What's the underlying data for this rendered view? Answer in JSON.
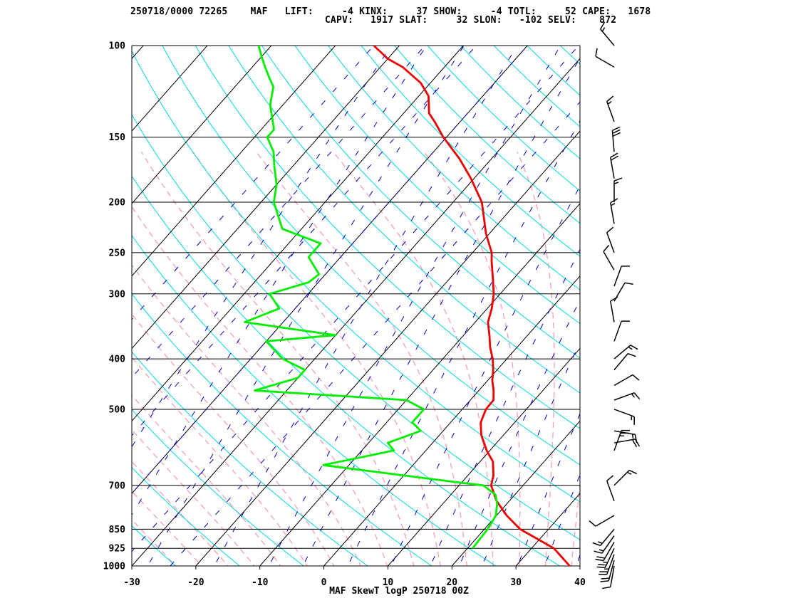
{
  "header": {
    "line1": "250718/0000 72265    MAF   LIFT:     -4 KINX:     37 SHOW:     -4 TOTL:     52 CAPE:   1678",
    "line2": "                                  CAPV:   1917 SLAT:     32 SLON:   -102 SELV:    872"
  },
  "chart_data": {
    "type": "line",
    "title": "MAF SkewT logP 250718 00Z",
    "xlabel": "",
    "ylabel": "",
    "x_ticks": [
      -30,
      -20,
      -10,
      0,
      10,
      20,
      30,
      40
    ],
    "xlim": [
      -30,
      40
    ],
    "pressure_ticks": [
      100,
      150,
      200,
      250,
      300,
      400,
      500,
      700,
      850,
      925,
      1000
    ],
    "ylim": [
      1000,
      100
    ],
    "y_scale": "log-pressure",
    "colors": {
      "temperature": "#ee0000",
      "dewpoint": "#00ee00",
      "isotherms": "#000000",
      "dry_adiabats": "#00d8e0",
      "moist_adiabats": "#f4a0b0",
      "mixing_ratio": "#0000cc",
      "wind_barbs": "#000000"
    },
    "series": [
      {
        "type": "temperature",
        "points": [
          [
            1000,
            38.4
          ],
          [
            925,
            33.5
          ],
          [
            850,
            25.6
          ],
          [
            800,
            21.6
          ],
          [
            750,
            18.0
          ],
          [
            700,
            15.0
          ],
          [
            670,
            14.0
          ],
          [
            630,
            12.0
          ],
          [
            600,
            9.5
          ],
          [
            560,
            6.5
          ],
          [
            530,
            4.7
          ],
          [
            500,
            3.7
          ],
          [
            480,
            3.6
          ],
          [
            460,
            2.3
          ],
          [
            440,
            0.7
          ],
          [
            420,
            -0.6
          ],
          [
            400,
            -2.2
          ],
          [
            380,
            -4.2
          ],
          [
            360,
            -6.0
          ],
          [
            340,
            -8.0
          ],
          [
            320,
            -9.3
          ],
          [
            300,
            -11.0
          ],
          [
            280,
            -13.3
          ],
          [
            260,
            -15.8
          ],
          [
            250,
            -17.0
          ],
          [
            230,
            -20.5
          ],
          [
            200,
            -25.5
          ],
          [
            180,
            -30.5
          ],
          [
            165,
            -35.0
          ],
          [
            150,
            -40.5
          ],
          [
            140,
            -44.0
          ],
          [
            135,
            -46.0
          ],
          [
            125,
            -48.5
          ],
          [
            118,
            -51.5
          ],
          [
            110,
            -56.5
          ],
          [
            106,
            -60.0
          ],
          [
            100,
            -64.0
          ]
        ]
      },
      {
        "type": "dewpoint",
        "points": [
          [
            925,
            20.8
          ],
          [
            850,
            20.5
          ],
          [
            800,
            19.9
          ],
          [
            760,
            18.5
          ],
          [
            730,
            17.0
          ],
          [
            700,
            13.8
          ],
          [
            690,
            9.0
          ],
          [
            640,
            -14.0
          ],
          [
            600,
            -5.0
          ],
          [
            580,
            -7.0
          ],
          [
            550,
            -3.5
          ],
          [
            530,
            -6.0
          ],
          [
            500,
            -6.0
          ],
          [
            480,
            -10.0
          ],
          [
            460,
            -35.0
          ],
          [
            435,
            -30.0
          ],
          [
            420,
            -30.0
          ],
          [
            400,
            -35.0
          ],
          [
            370,
            -40.0
          ],
          [
            360,
            -30.0
          ],
          [
            350,
            -38.0
          ],
          [
            340,
            -46.0
          ],
          [
            320,
            -42.5
          ],
          [
            300,
            -46.0
          ],
          [
            285,
            -41.5
          ],
          [
            275,
            -41.0
          ],
          [
            255,
            -45.0
          ],
          [
            240,
            -45.0
          ],
          [
            225,
            -53.0
          ],
          [
            200,
            -58.0
          ],
          [
            185,
            -60.0
          ],
          [
            170,
            -63.0
          ],
          [
            160,
            -65.0
          ],
          [
            150,
            -68.0
          ],
          [
            145,
            -68.0
          ],
          [
            130,
            -72.0
          ],
          [
            120,
            -74.0
          ],
          [
            115,
            -76.0
          ],
          [
            110,
            -78.0
          ],
          [
            105,
            -80.0
          ],
          [
            100,
            -82.0
          ]
        ]
      }
    ],
    "wind_barbs": [
      {
        "p": 1000,
        "dir": 190,
        "spd": 10
      },
      {
        "p": 975,
        "dir": 195,
        "spd": 20
      },
      {
        "p": 950,
        "dir": 200,
        "spd": 25
      },
      {
        "p": 925,
        "dir": 205,
        "spd": 25
      },
      {
        "p": 900,
        "dir": 210,
        "spd": 20
      },
      {
        "p": 875,
        "dir": 215,
        "spd": 15
      },
      {
        "p": 850,
        "dir": 220,
        "spd": 15
      },
      {
        "p": 800,
        "dir": 240,
        "spd": 10
      },
      {
        "p": 750,
        "dir": 340,
        "spd": 10
      },
      {
        "p": 700,
        "dir": 45,
        "spd": 15
      },
      {
        "p": 600,
        "dir": 20,
        "spd": 25
      },
      {
        "p": 580,
        "dir": 80,
        "spd": 20
      },
      {
        "p": 550,
        "dir": 100,
        "spd": 15
      },
      {
        "p": 500,
        "dir": 110,
        "spd": 15
      },
      {
        "p": 480,
        "dir": 70,
        "spd": 15
      },
      {
        "p": 450,
        "dir": 60,
        "spd": 10
      },
      {
        "p": 420,
        "dir": 40,
        "spd": 10
      },
      {
        "p": 400,
        "dir": 50,
        "spd": 15
      },
      {
        "p": 370,
        "dir": 20,
        "spd": 10
      },
      {
        "p": 340,
        "dir": 350,
        "spd": 10
      },
      {
        "p": 310,
        "dir": 30,
        "spd": 10
      },
      {
        "p": 290,
        "dir": 20,
        "spd": 10
      },
      {
        "p": 270,
        "dir": 330,
        "spd": 10
      },
      {
        "p": 250,
        "dir": 340,
        "spd": 10
      },
      {
        "p": 220,
        "dir": 350,
        "spd": 15
      },
      {
        "p": 200,
        "dir": 0,
        "spd": 15
      },
      {
        "p": 180,
        "dir": 350,
        "spd": 20
      },
      {
        "p": 160,
        "dir": 355,
        "spd": 30
      },
      {
        "p": 140,
        "dir": 340,
        "spd": 15
      },
      {
        "p": 110,
        "dir": 300,
        "spd": 10
      },
      {
        "p": 100,
        "dir": 320,
        "spd": 15
      }
    ]
  }
}
